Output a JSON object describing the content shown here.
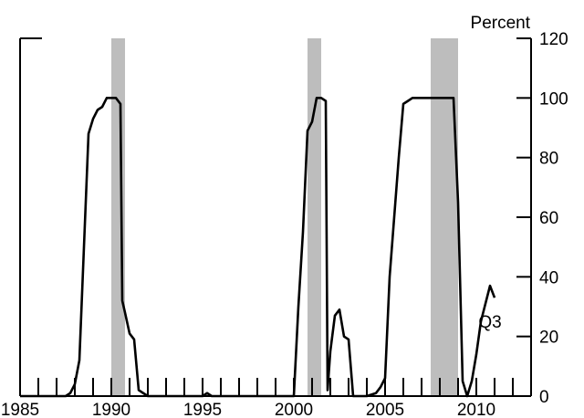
{
  "chart_data": {
    "type": "line",
    "title": "",
    "ylabel": "Percent",
    "xlabel": "",
    "xlim": [
      1985,
      2013
    ],
    "ylim": [
      0,
      120
    ],
    "x_ticks": [
      "1985",
      "1990",
      "1995",
      "2000",
      "2005",
      "2010"
    ],
    "y_ticks": [
      "0",
      "20",
      "40",
      "60",
      "80",
      "100",
      "120"
    ],
    "grid": false,
    "recessions": [
      [
        1990.0,
        1990.75
      ],
      [
        2000.75,
        2001.5
      ],
      [
        2007.5,
        2009.0
      ]
    ],
    "annotations": [
      {
        "text": "Q3",
        "x": 2010.75,
        "y": 23
      }
    ],
    "series": [
      {
        "name": "",
        "points": [
          [
            1985.0,
            0
          ],
          [
            1986.0,
            0
          ],
          [
            1987.0,
            0
          ],
          [
            1987.5,
            0
          ],
          [
            1987.75,
            1
          ],
          [
            1988.0,
            4
          ],
          [
            1988.25,
            12
          ],
          [
            1988.5,
            50
          ],
          [
            1988.75,
            88
          ],
          [
            1989.0,
            93
          ],
          [
            1989.25,
            96
          ],
          [
            1989.5,
            97
          ],
          [
            1989.75,
            100
          ],
          [
            1990.0,
            100
          ],
          [
            1990.25,
            100
          ],
          [
            1990.5,
            98
          ],
          [
            1990.6,
            32
          ],
          [
            1990.75,
            28
          ],
          [
            1991.0,
            21
          ],
          [
            1991.25,
            19
          ],
          [
            1991.5,
            2
          ],
          [
            1991.75,
            1
          ],
          [
            1992.0,
            0
          ],
          [
            1995.0,
            0
          ],
          [
            1995.25,
            1
          ],
          [
            1995.5,
            0
          ],
          [
            2000.0,
            0
          ],
          [
            2000.25,
            30
          ],
          [
            2000.5,
            55
          ],
          [
            2000.75,
            89
          ],
          [
            2001.0,
            92
          ],
          [
            2001.25,
            100
          ],
          [
            2001.5,
            100
          ],
          [
            2001.75,
            99
          ],
          [
            2001.85,
            2
          ],
          [
            2002.0,
            15
          ],
          [
            2002.25,
            27
          ],
          [
            2002.5,
            29
          ],
          [
            2002.75,
            20
          ],
          [
            2003.0,
            19
          ],
          [
            2003.25,
            0
          ],
          [
            2004.0,
            0
          ],
          [
            2004.5,
            1
          ],
          [
            2004.75,
            3
          ],
          [
            2005.0,
            6
          ],
          [
            2005.25,
            40
          ],
          [
            2005.5,
            60
          ],
          [
            2005.75,
            80
          ],
          [
            2006.0,
            98
          ],
          [
            2006.25,
            99
          ],
          [
            2006.5,
            100
          ],
          [
            2007.0,
            100
          ],
          [
            2007.5,
            100
          ],
          [
            2008.0,
            100
          ],
          [
            2008.5,
            100
          ],
          [
            2008.75,
            100
          ],
          [
            2009.0,
            65
          ],
          [
            2009.25,
            5
          ],
          [
            2009.5,
            0
          ],
          [
            2009.75,
            5
          ],
          [
            2010.0,
            14
          ],
          [
            2010.25,
            25
          ],
          [
            2010.5,
            31
          ],
          [
            2010.75,
            37
          ],
          [
            2011.0,
            33
          ]
        ]
      }
    ]
  }
}
